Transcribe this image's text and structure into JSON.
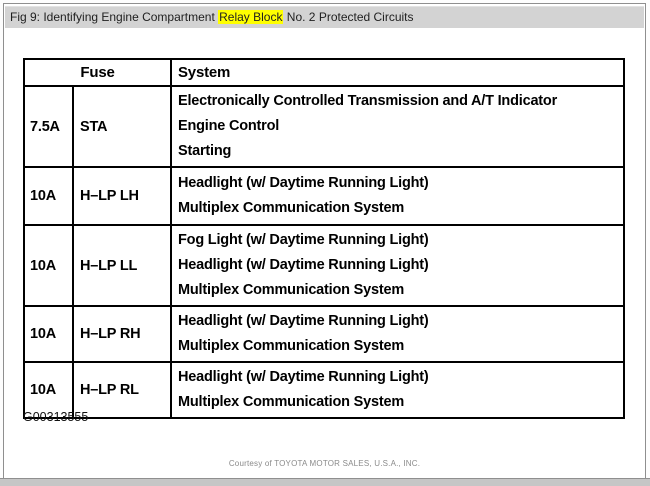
{
  "title_bar": {
    "prefix": "Fig 9: Identifying Engine Compartment ",
    "highlight": "Relay Block",
    "suffix": " No. 2 Protected Circuits",
    "highlight_color": "#ffff00",
    "background_color": "#d3d3d3"
  },
  "table": {
    "headers": {
      "fuse": "Fuse",
      "system": "System"
    },
    "rows": [
      {
        "amp": "7.5A",
        "name": "STA",
        "systems": [
          "Electronically Controlled Transmission and A/T Indicator",
          "Engine Control",
          "Starting"
        ]
      },
      {
        "amp": "10A",
        "name": "H–LP LH",
        "systems": [
          "Headlight (w/ Daytime Running Light)",
          "Multiplex Communication System"
        ]
      },
      {
        "amp": "10A",
        "name": "H–LP LL",
        "systems": [
          "Fog Light (w/ Daytime Running Light)",
          "Headlight (w/ Daytime Running Light)",
          "Multiplex Communication System"
        ]
      },
      {
        "amp": "10A",
        "name": "H–LP RH",
        "systems": [
          "Headlight (w/ Daytime Running Light)",
          "Multiplex Communication System"
        ]
      },
      {
        "amp": "10A",
        "name": "H–LP RL",
        "systems": [
          "Headlight (w/ Daytime Running Light)",
          "Multiplex Communication System"
        ]
      }
    ]
  },
  "figure_id": "G00313555",
  "footer": {
    "credit": "Courtesy of TOYOTA MOTOR SALES, U.S.A., INC."
  }
}
